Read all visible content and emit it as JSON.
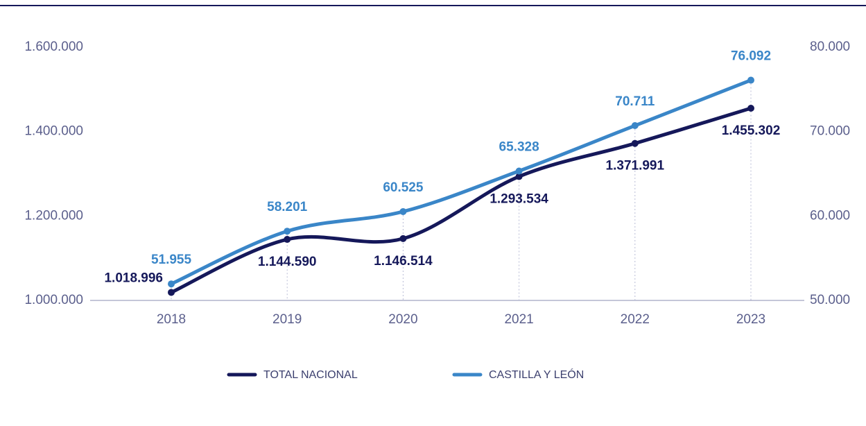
{
  "chart_data": {
    "type": "line",
    "categories": [
      "2018",
      "2019",
      "2020",
      "2021",
      "2022",
      "2023"
    ],
    "series": [
      {
        "name": "TOTAL NACIONAL",
        "color": "#15185a",
        "axis": "y",
        "values": [
          1018996,
          1144590,
          1146514,
          1293534,
          1371991,
          1455302
        ],
        "value_labels": [
          "1.018.996",
          "1.144.590",
          "1.146.514",
          "1.293.534",
          "1.371.991",
          "1.455.302"
        ]
      },
      {
        "name": "CASTILLA Y LEÓN",
        "color": "#3a86c8",
        "axis": "y2",
        "values": [
          51955,
          58201,
          60525,
          65328,
          70711,
          76092
        ],
        "value_labels": [
          "51.955",
          "58.201",
          "60.525",
          "65.328",
          "70.711",
          "76.092"
        ]
      }
    ],
    "ylim": [
      1000000,
      1600000
    ],
    "yticks": [
      {
        "value": 1000000,
        "label": "1.000.000"
      },
      {
        "value": 1200000,
        "label": "1.200.000"
      },
      {
        "value": 1400000,
        "label": "1.400.000"
      },
      {
        "value": 1600000,
        "label": "1.600.000"
      }
    ],
    "y2lim": [
      50000,
      80000
    ],
    "y2ticks": [
      {
        "value": 50000,
        "label": "50.000"
      },
      {
        "value": 60000,
        "label": "60.000"
      },
      {
        "value": 70000,
        "label": "70.000"
      },
      {
        "value": 80000,
        "label": "80.000"
      }
    ]
  }
}
